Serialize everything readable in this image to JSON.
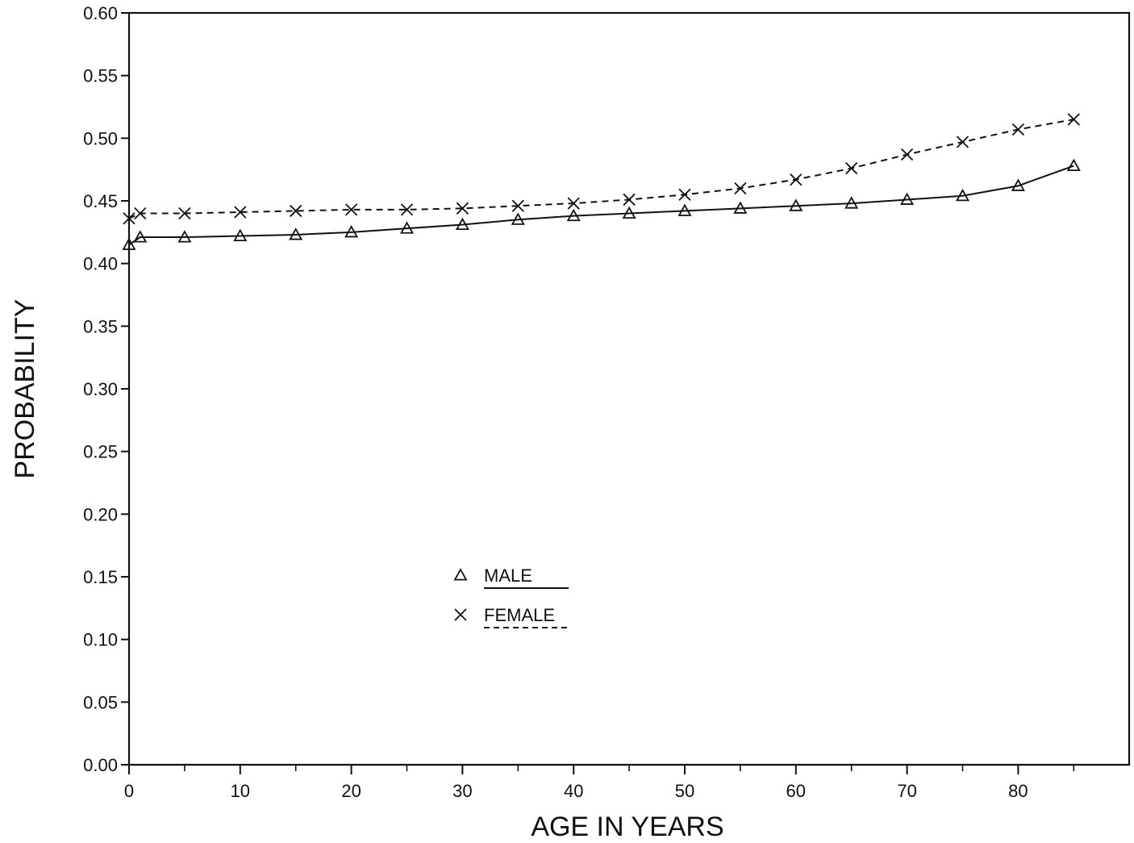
{
  "chart_data": {
    "type": "line",
    "xlabel": "AGE IN YEARS",
    "ylabel": "PROBABILITY",
    "xlim": [
      0,
      90
    ],
    "ylim": [
      0.0,
      0.6
    ],
    "x_ticks": [
      0,
      10,
      20,
      30,
      40,
      50,
      60,
      70,
      80
    ],
    "x_tick_labels": [
      "0",
      "10",
      "20",
      "30",
      "40",
      "50",
      "60",
      "70",
      "80"
    ],
    "x_minor_ticks": [
      5,
      15,
      25,
      35,
      45,
      55,
      65,
      75,
      85
    ],
    "y_ticks": [
      0.0,
      0.05,
      0.1,
      0.15,
      0.2,
      0.25,
      0.3,
      0.35,
      0.4,
      0.45,
      0.5,
      0.55,
      0.6
    ],
    "y_tick_labels": [
      "0.00",
      "0.05",
      "0.10",
      "0.15",
      "0.20",
      "0.25",
      "0.30",
      "0.35",
      "0.40",
      "0.45",
      "0.50",
      "0.55",
      "0.60"
    ],
    "grid": false,
    "legend_position": "center-left",
    "x": [
      0,
      1,
      5,
      10,
      15,
      20,
      25,
      30,
      35,
      40,
      45,
      50,
      55,
      60,
      65,
      70,
      75,
      80,
      85
    ],
    "series": [
      {
        "name": "MALE",
        "marker": "triangle",
        "line_style": "solid",
        "values": [
          0.415,
          0.421,
          0.421,
          0.422,
          0.423,
          0.425,
          0.428,
          0.431,
          0.435,
          0.438,
          0.44,
          0.442,
          0.444,
          0.446,
          0.448,
          0.451,
          0.454,
          0.462,
          0.478
        ]
      },
      {
        "name": "FEMALE",
        "marker": "x",
        "line_style": "dashed",
        "values": [
          0.436,
          0.44,
          0.44,
          0.441,
          0.442,
          0.443,
          0.443,
          0.444,
          0.446,
          0.448,
          0.451,
          0.455,
          0.46,
          0.467,
          0.476,
          0.487,
          0.497,
          0.507,
          0.515
        ]
      }
    ]
  }
}
